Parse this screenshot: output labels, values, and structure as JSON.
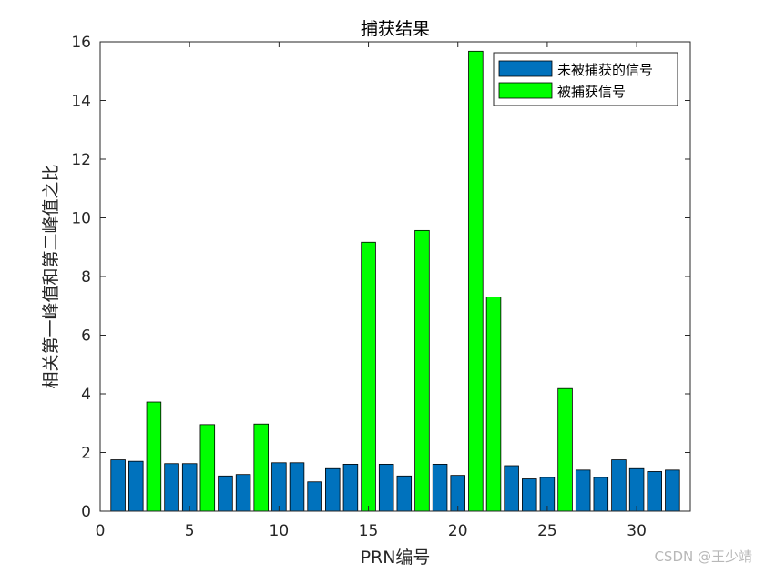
{
  "chart_data": {
    "type": "bar",
    "title": "捕获结果",
    "xlabel": "PRN编号",
    "ylabel": "相关第一峰值和第二峰值之比",
    "xlim": [
      0,
      33
    ],
    "ylim": [
      0,
      16
    ],
    "xticks": [
      0,
      5,
      10,
      15,
      20,
      25,
      30
    ],
    "yticks": [
      0,
      2,
      4,
      6,
      8,
      10,
      12,
      14,
      16
    ],
    "legend_position": "top-right",
    "categories": [
      1,
      2,
      3,
      4,
      5,
      6,
      7,
      8,
      9,
      10,
      11,
      12,
      13,
      14,
      15,
      16,
      17,
      18,
      19,
      20,
      21,
      22,
      23,
      24,
      25,
      26,
      27,
      28,
      29,
      30,
      31,
      32
    ],
    "values": [
      1.75,
      1.7,
      3.72,
      1.62,
      1.62,
      2.95,
      1.2,
      1.25,
      2.97,
      1.65,
      1.65,
      1.0,
      1.45,
      1.6,
      9.17,
      1.6,
      1.2,
      9.57,
      1.6,
      1.22,
      15.68,
      7.3,
      1.55,
      1.1,
      1.15,
      4.18,
      1.4,
      1.15,
      1.75,
      1.45,
      1.35,
      1.4
    ],
    "acquired": [
      false,
      false,
      true,
      false,
      false,
      true,
      false,
      false,
      true,
      false,
      false,
      false,
      false,
      false,
      true,
      false,
      false,
      true,
      false,
      false,
      true,
      true,
      false,
      false,
      false,
      true,
      false,
      false,
      false,
      false,
      false,
      false
    ],
    "series": [
      {
        "name": "未被捕获的信号",
        "color": "#0072BD"
      },
      {
        "name": "被捕获信号",
        "color": "#00FF00"
      }
    ]
  },
  "watermark": "CSDN @王少靖"
}
